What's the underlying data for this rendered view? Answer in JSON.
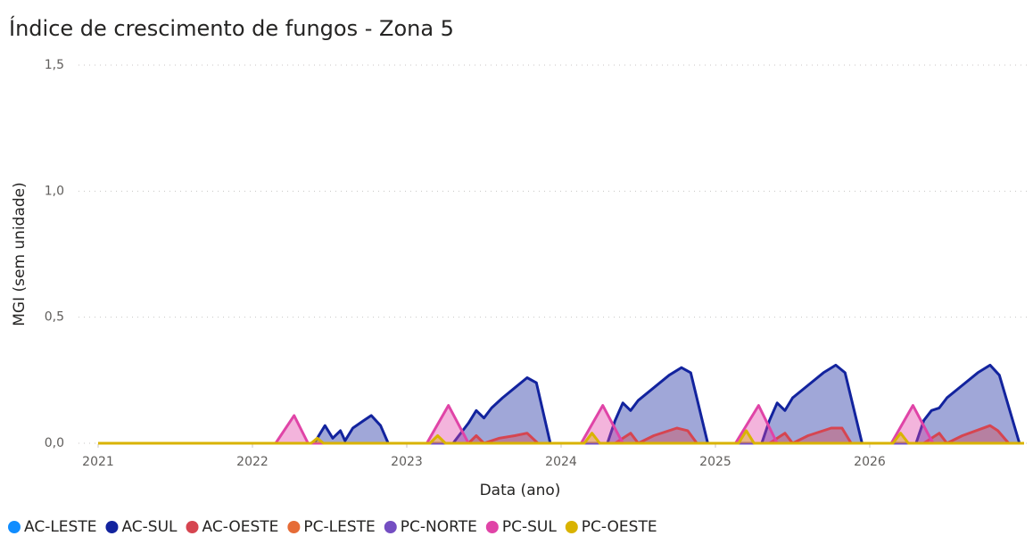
{
  "chart_data": {
    "type": "area",
    "title": "Índice de crescimento de fungos - Zona 5",
    "x_label": "Data (ano)",
    "y_label": "MGI (sem unidade)",
    "xlim": [
      2021,
      2027
    ],
    "xticks": [
      2021,
      2022,
      2023,
      2024,
      2025,
      2026
    ],
    "ylim": [
      0,
      1.5
    ],
    "yticks": [
      {
        "value": 0,
        "label": "0,0"
      },
      {
        "value": 0.5,
        "label": "0,5"
      },
      {
        "value": 1.0,
        "label": "1,0"
      },
      {
        "value": 1.5,
        "label": "1,5"
      }
    ],
    "grid": true,
    "legend": "bottom",
    "series": [
      {
        "name": "AC-LESTE",
        "color": "#118dff",
        "x": [
          2021,
          2027
        ],
        "values": [
          0,
          0
        ]
      },
      {
        "name": "AC-SUL",
        "color": "#12239e",
        "x": [
          2021,
          2022.4,
          2022.47,
          2022.52,
          2022.57,
          2022.6,
          2022.65,
          2022.72,
          2022.77,
          2022.83,
          2022.88,
          2023.3,
          2023.4,
          2023.45,
          2023.5,
          2023.55,
          2023.62,
          2023.7,
          2023.78,
          2023.84,
          2023.93,
          2024.3,
          2024.35,
          2024.4,
          2024.45,
          2024.5,
          2024.6,
          2024.7,
          2024.78,
          2024.84,
          2024.95,
          2025.3,
          2025.35,
          2025.4,
          2025.45,
          2025.5,
          2025.6,
          2025.7,
          2025.78,
          2025.84,
          2025.95,
          2026.3,
          2026.35,
          2026.4,
          2026.45,
          2026.5,
          2026.6,
          2026.7,
          2026.78,
          2026.84,
          2026.97
        ],
        "values": [
          0,
          0,
          0.07,
          0.02,
          0.05,
          0.01,
          0.06,
          0.09,
          0.11,
          0.07,
          0,
          0,
          0.08,
          0.13,
          0.1,
          0.14,
          0.18,
          0.22,
          0.26,
          0.24,
          0,
          0,
          0.09,
          0.16,
          0.13,
          0.17,
          0.22,
          0.27,
          0.3,
          0.28,
          0,
          0,
          0.09,
          0.16,
          0.13,
          0.18,
          0.23,
          0.28,
          0.31,
          0.28,
          0,
          0,
          0.09,
          0.13,
          0.14,
          0.18,
          0.23,
          0.28,
          0.31,
          0.27,
          0
        ]
      },
      {
        "name": "AC-OESTE",
        "color": "#d64550",
        "x": [
          2021,
          2023.4,
          2023.45,
          2023.5,
          2023.6,
          2023.7,
          2023.78,
          2023.85,
          2024.35,
          2024.45,
          2024.5,
          2024.6,
          2024.75,
          2024.82,
          2024.88,
          2025.35,
          2025.45,
          2025.5,
          2025.6,
          2025.75,
          2025.82,
          2025.88,
          2026.35,
          2026.45,
          2026.5,
          2026.6,
          2026.78,
          2026.83,
          2026.9,
          2027
        ],
        "values": [
          0,
          0,
          0.03,
          0,
          0.02,
          0.03,
          0.04,
          0,
          0,
          0.04,
          0,
          0.03,
          0.06,
          0.05,
          0,
          0,
          0.04,
          0,
          0.03,
          0.06,
          0.06,
          0,
          0,
          0.04,
          0,
          0.03,
          0.07,
          0.05,
          0,
          0
        ]
      },
      {
        "name": "PC-LESTE",
        "color": "#e66c37",
        "x": [
          2021,
          2027
        ],
        "values": [
          0,
          0
        ]
      },
      {
        "name": "PC-NORTE",
        "color": "#744ec2",
        "x": [
          2021,
          2027
        ],
        "values": [
          0,
          0
        ]
      },
      {
        "name": "PC-SUL",
        "color": "#e044a7",
        "x": [
          2021,
          2022.15,
          2022.27,
          2022.36,
          2023.13,
          2023.27,
          2023.4,
          2024.13,
          2024.27,
          2024.4,
          2025.13,
          2025.28,
          2025.4,
          2026.14,
          2026.28,
          2026.41,
          2027
        ],
        "values": [
          0,
          0,
          0.11,
          0,
          0,
          0.15,
          0,
          0,
          0.15,
          0,
          0,
          0.15,
          0,
          0,
          0.15,
          0,
          0
        ]
      },
      {
        "name": "PC-OESTE",
        "color": "#d9b300",
        "x": [
          2021,
          2022.38,
          2022.42,
          2022.46,
          2023.15,
          2023.2,
          2023.25,
          2024.15,
          2024.2,
          2024.25,
          2025.15,
          2025.2,
          2025.25,
          2026.15,
          2026.2,
          2026.25,
          2027
        ],
        "values": [
          0,
          0,
          0.02,
          0,
          0,
          0.03,
          0,
          0,
          0.04,
          0,
          0,
          0.05,
          0,
          0,
          0.04,
          0,
          0
        ]
      }
    ]
  }
}
